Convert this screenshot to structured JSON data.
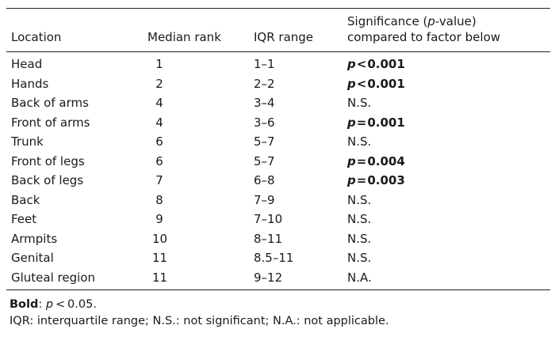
{
  "table": {
    "headers": {
      "location": "Location",
      "median": "Median rank",
      "iqr": "IQR range",
      "sig_line1_pre": "Significance (",
      "sig_line1_p": "p",
      "sig_line1_post": "-value)",
      "sig_line2": "compared to factor below"
    },
    "rows": [
      {
        "location": "Head",
        "median": "1",
        "iqr": "1–1",
        "sig_op": "<",
        "sig_val": "0.001",
        "bold": true
      },
      {
        "location": "Hands",
        "median": "2",
        "iqr": "2–2",
        "sig_op": "<",
        "sig_val": "0.001",
        "bold": true
      },
      {
        "location": "Back of arms",
        "median": "4",
        "iqr": "3–4",
        "sig_text": "N.S.",
        "bold": false
      },
      {
        "location": "Front of arms",
        "median": "4",
        "iqr": "3–6",
        "sig_op": "=",
        "sig_val": "0.001",
        "bold": true
      },
      {
        "location": "Trunk",
        "median": "6",
        "iqr": "5–7",
        "sig_text": "N.S.",
        "bold": false
      },
      {
        "location": "Front of legs",
        "median": "6",
        "iqr": "5–7",
        "sig_op": "=",
        "sig_val": "0.004",
        "bold": true
      },
      {
        "location": "Back of legs",
        "median": "7",
        "iqr": "6–8",
        "sig_op": "=",
        "sig_val": "0.003",
        "bold": true
      },
      {
        "location": "Back",
        "median": "8",
        "iqr": "7–9",
        "sig_text": "N.S.",
        "bold": false
      },
      {
        "location": "Feet",
        "median": "9",
        "iqr": "7–10",
        "sig_text": "N.S.",
        "bold": false
      },
      {
        "location": "Armpits",
        "median": "10",
        "iqr": "8–11",
        "sig_text": "N.S.",
        "bold": false
      },
      {
        "location": "Genital",
        "median": "11",
        "iqr": "8.5–11",
        "sig_text": "N.S.",
        "bold": false
      },
      {
        "location": "Gluteal region",
        "median": "11",
        "iqr": "9–12",
        "sig_text": "N.A.",
        "bold": false
      }
    ]
  },
  "notes": {
    "line1_bold": "Bold",
    "line1_rest_pre": ": ",
    "line1_p": "p",
    "line1_rest_post": " < 0.05.",
    "line2": "IQR: interquartile range; N.S.: not significant; N.A.: not applicable."
  }
}
